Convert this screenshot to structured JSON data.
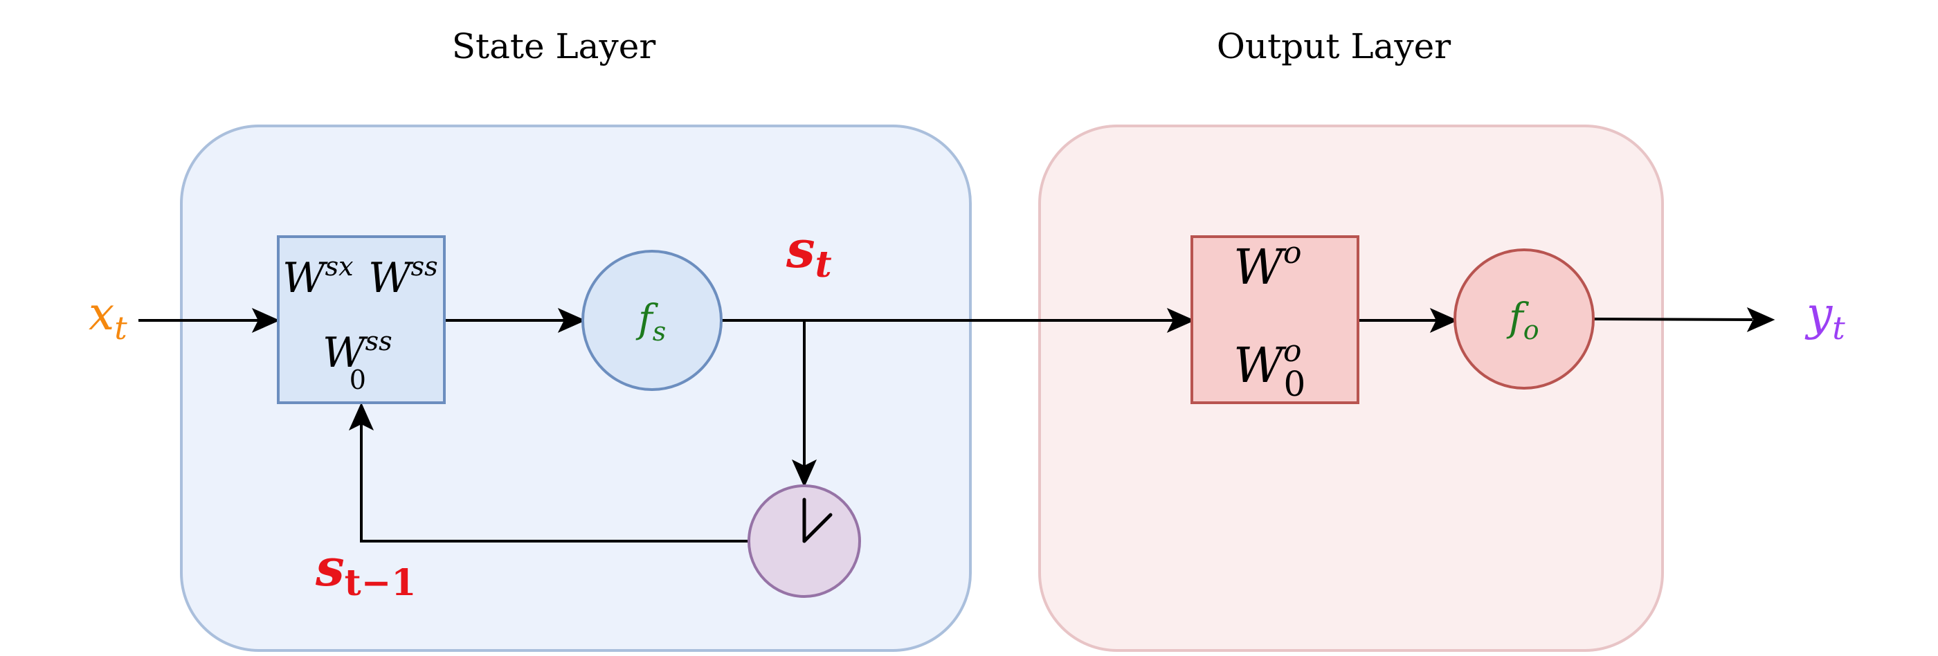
{
  "state_layer": {
    "title": "State Layer",
    "fill": "#ecf2fc",
    "stroke": "#aabfdc"
  },
  "output_layer": {
    "title": "Output Layer",
    "fill": "#fbeeee",
    "stroke": "#e8c4c6"
  },
  "input": {
    "symbol": "x",
    "subscript": "t",
    "color": "#f5880f"
  },
  "output": {
    "symbol": "y",
    "subscript": "t",
    "color": "#9b3ff4"
  },
  "state_weights": {
    "w1": {
      "symbol": "W",
      "superscript": "sx"
    },
    "w2": {
      "symbol": "W",
      "superscript": "ss"
    },
    "w3": {
      "symbol": "W",
      "superscript": "ss",
      "subscript": "0"
    },
    "fill": "#d9e6f7",
    "stroke": "#6c8ebf"
  },
  "state_activation": {
    "symbol": "f",
    "subscript": "s",
    "color": "#1d7a1d",
    "fill": "#d9e6f7",
    "stroke": "#6c8ebf"
  },
  "state_label": {
    "symbol": "s",
    "subscript": "t",
    "color": "#e8141a"
  },
  "prev_state_label": {
    "symbol": "s",
    "subscript": "t−1",
    "color": "#e8141a"
  },
  "delay": {
    "icon": "clock-icon",
    "fill": "#e3d5e8",
    "stroke": "#9673a6"
  },
  "output_weights": {
    "w1": {
      "symbol": "W",
      "superscript": "o"
    },
    "w2": {
      "symbol": "W",
      "superscript": "o",
      "subscript": "0"
    },
    "fill": "#f7cdcc",
    "stroke": "#b85450"
  },
  "output_activation": {
    "symbol": "f",
    "subscript": "o",
    "color": "#1d7a1d",
    "fill": "#f7cdcc",
    "stroke": "#b85450"
  }
}
